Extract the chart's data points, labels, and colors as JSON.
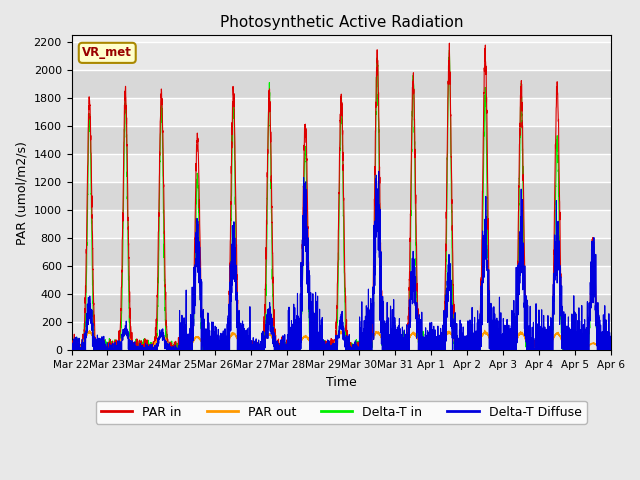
{
  "title": "Photosynthetic Active Radiation",
  "ylabel": "PAR (umol/m2/s)",
  "xlabel": "Time",
  "station_label": "VR_met",
  "ylim": [
    0,
    2250
  ],
  "yticks": [
    0,
    200,
    400,
    600,
    800,
    1000,
    1200,
    1400,
    1600,
    1800,
    2000,
    2200
  ],
  "figure_bg": "#e8e8e8",
  "plot_bg": "#f0f0f0",
  "colors": {
    "PAR_in": "#dd0000",
    "PAR_out": "#ff9900",
    "Delta_T_in": "#00ee00",
    "Delta_T_Diffuse": "#0000dd"
  },
  "legend": [
    "PAR in",
    "PAR out",
    "Delta-T in",
    "Delta-T Diffuse"
  ],
  "x_tick_labels": [
    "Mar 22",
    "Mar 23",
    "Mar 24",
    "Mar 25",
    "Mar 26",
    "Mar 27",
    "Mar 28",
    "Mar 29",
    "Mar 30",
    "Mar 31",
    "Apr 1",
    "Apr 2",
    "Apr 3",
    "Apr 4",
    "Apr 5",
    "Apr 6"
  ],
  "num_days": 15,
  "points_per_day": 288,
  "peaks_red": [
    1780,
    1840,
    1830,
    1520,
    1840,
    1810,
    1630,
    1800,
    2080,
    1930,
    2080,
    2130,
    1860,
    1860,
    800
  ],
  "peaks_green": [
    1680,
    1760,
    1760,
    1250,
    1760,
    1810,
    1450,
    1760,
    2080,
    1930,
    2080,
    1820,
    1810,
    1500,
    780
  ],
  "peaks_orange": [
    130,
    120,
    115,
    95,
    120,
    115,
    100,
    130,
    130,
    125,
    130,
    130,
    125,
    120,
    50
  ],
  "peaks_blue": [
    280,
    150,
    125,
    760,
    720,
    260,
    1020,
    200,
    1050,
    540,
    530,
    790,
    800,
    790,
    650
  ]
}
